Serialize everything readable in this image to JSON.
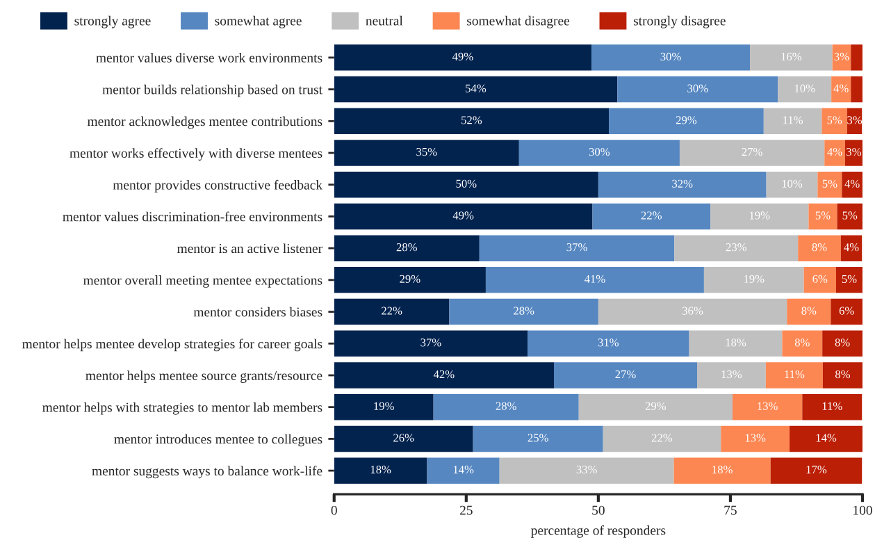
{
  "chart_data": {
    "type": "bar",
    "orientation": "horizontal",
    "stacked": true,
    "xlabel": "percentage of responders",
    "categories": [
      "mentor values diverse work environments",
      "mentor builds relationship based on trust",
      "mentor acknowledges mentee contributions",
      "mentor works effectively with diverse mentees",
      "mentor provides constructive feedback",
      "mentor values discrimination-free environments",
      "mentor is an active listener",
      "mentor overall meeting mentee expectations",
      "mentor considers biases",
      "mentor helps mentee develop strategies for career goals",
      "mentor helps mentee source grants/resource",
      "mentor helps with strategies to mentor lab members",
      "mentor introduces mentee to collegues",
      "mentor suggests ways to balance work-life"
    ],
    "series": [
      {
        "name": "strongly agree",
        "color": "#03234f",
        "values": [
          48.7,
          53.6,
          52.0,
          35.0,
          50.0,
          48.9,
          27.5,
          28.7,
          21.8,
          36.6,
          41.6,
          18.8,
          26.3,
          17.6
        ],
        "value_labels": [
          "49%",
          "54%",
          "52%",
          "35%",
          "50%",
          "49%",
          "28%",
          "29%",
          "22%",
          "37%",
          "42%",
          "19%",
          "26%",
          "18%"
        ]
      },
      {
        "name": "somewhat agree",
        "color": "#5687c1",
        "values": [
          30.0,
          30.4,
          29.3,
          30.4,
          31.8,
          22.3,
          36.9,
          41.3,
          28.2,
          30.6,
          27.1,
          27.5,
          24.6,
          13.7
        ],
        "value_labels": [
          "30%",
          "30%",
          "29%",
          "30%",
          "32%",
          "22%",
          "37%",
          "41%",
          "28%",
          "31%",
          "27%",
          "28%",
          "25%",
          "14%"
        ]
      },
      {
        "name": "neutral",
        "color": "#c0c0c0",
        "values": [
          15.6,
          10.1,
          11.0,
          27.4,
          9.7,
          18.6,
          23.4,
          18.9,
          35.7,
          17.6,
          13.0,
          29.1,
          22.3,
          33.0
        ],
        "value_labels": [
          "16%",
          "10%",
          "11%",
          "27%",
          "10%",
          "19%",
          "23%",
          "19%",
          "36%",
          "18%",
          "13%",
          "29%",
          "22%",
          "33%"
        ]
      },
      {
        "name": "somewhat disagree",
        "color": "#fc8753",
        "values": [
          3.5,
          3.7,
          4.8,
          3.9,
          4.6,
          5.4,
          8.1,
          6.1,
          8.3,
          7.6,
          10.8,
          13.2,
          13.0,
          18.3
        ],
        "value_labels": [
          "3%",
          "4%",
          "5%",
          "4%",
          "5%",
          "5%",
          "8%",
          "6%",
          "8%",
          "8%",
          "11%",
          "13%",
          "13%",
          "18%"
        ]
      },
      {
        "name": "strongly disagree",
        "color": "#bb1f05",
        "values": [
          2.2,
          2.2,
          2.8,
          3.3,
          3.9,
          4.8,
          4.0,
          5.0,
          6.0,
          7.6,
          7.5,
          11.3,
          13.8,
          17.3
        ],
        "value_labels": [
          null,
          null,
          "3%",
          "3%",
          "4%",
          "5%",
          "4%",
          "5%",
          "6%",
          "8%",
          "8%",
          "11%",
          "14%",
          "17%"
        ]
      }
    ],
    "xlim": [
      0,
      100
    ],
    "xticks": [
      0,
      25,
      50,
      75,
      100
    ],
    "legend": "top",
    "grid": false
  }
}
